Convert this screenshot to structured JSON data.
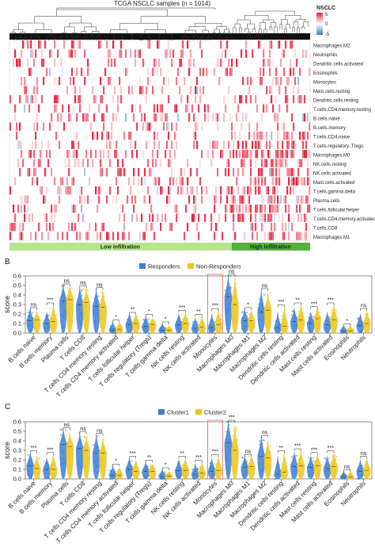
{
  "heatmap": {
    "title": "TCGA NSCLC samples (n = 1014)",
    "legend_title": "NSCLC",
    "legend_ticks": [
      "5",
      "0",
      "-5"
    ],
    "rows": [
      "Macrophages.M2",
      "Neutrophils",
      "Dendritic.cells.activated",
      "Eosinophils",
      "Monocytes",
      "Mast.cells.resting",
      "Dendritic.cells.resting",
      "T.cells.CD4.memory.resting",
      "B.cells.naive",
      "B.cells.memory",
      "T.cells.CD4.naive",
      "T.cells.regulatory..Tregs.",
      "Macrophages.M0",
      "NK.cells.resting",
      "NK.cells.activated",
      "Mast.cells.activated",
      "T.cells.gamma.delta",
      "Plasma.cells",
      "T.cells.follicular.helper",
      "T.cells.CD4.memory.activated",
      "T.cells.CD8",
      "Macrophages.M1"
    ],
    "groups": [
      {
        "label": "Low infiltration",
        "color": "#b7e58e"
      },
      {
        "label": "High infiltration",
        "color": "#55b23c"
      }
    ]
  },
  "panels": [
    {
      "letter": "B",
      "legend": [
        {
          "label": "Responders",
          "color": "#3a7fd5"
        },
        {
          "label": "Non-Responders",
          "color": "#f0c419"
        }
      ]
    },
    {
      "letter": "C",
      "legend": [
        {
          "label": "Cluster1",
          "color": "#3a7fd5"
        },
        {
          "label": "Cluster2",
          "color": "#f0c419"
        }
      ]
    }
  ],
  "chart_data": [
    {
      "type": "heatmap",
      "title": "TCGA NSCLC samples (n = 1014)",
      "rows": [
        "Macrophages.M2",
        "Neutrophils",
        "Dendritic.cells.activated",
        "Eosinophils",
        "Monocytes",
        "Mast.cells.resting",
        "Dendritic.cells.resting",
        "T.cells.CD4.memory.resting",
        "B.cells.naive",
        "B.cells.memory",
        "T.cells.CD4.naive",
        "T.cells.regulatory..Tregs.",
        "Macrophages.M0",
        "NK.cells.resting",
        "NK.cells.activated",
        "Mast.cells.activated",
        "T.cells.gamma.delta",
        "Plasma.cells",
        "T.cells.follicular.helper",
        "T.cells.CD4.memory.activated",
        "T.cells.CD8",
        "Macrophages.M1"
      ],
      "color_range": [
        -5,
        5
      ],
      "legend_title": "NSCLC",
      "column_groups": [
        {
          "label": "Low infiltration",
          "fraction": 0.74
        },
        {
          "label": "High infiltration",
          "fraction": 0.26
        }
      ]
    },
    {
      "type": "violin",
      "panel": "B",
      "ylabel": "score",
      "ylim": [
        0,
        0.6
      ],
      "yticks": [
        "0.0",
        "0.1",
        "0.2",
        "0.3",
        "0.4",
        "0.5",
        "0.6"
      ],
      "categories": [
        "B cells naive",
        "B cells memory",
        "Plasma cells",
        "T cells CD8",
        "T cells CD4 memory resting",
        "T cells CD4 memory activated",
        "T cells follicular helper",
        "T cells regulatory (Tregs)",
        "T cells gamma delta",
        "NK cells resting",
        "NK cells activated",
        "Monocytes",
        "Macrophages M0",
        "Macrophages M1",
        "Macrophages M2",
        "Dendritic cells resting",
        "Dendritic cells activated",
        "Mast cells resting",
        "Mast cells activated",
        "Eosinophils",
        "Neutrophils"
      ],
      "significance": [
        "ns",
        "***",
        "ns",
        "ns",
        "ns",
        "*",
        "**",
        "*",
        "*",
        "***",
        "**",
        "***",
        "ns",
        "*",
        "ns",
        "***",
        "**",
        "***",
        "***",
        "*",
        "ns"
      ],
      "highlight": "Monocytes",
      "series": [
        {
          "name": "Responders",
          "medians": [
            0.13,
            0.1,
            0.34,
            0.3,
            0.28,
            0.03,
            0.09,
            0.07,
            0.03,
            0.09,
            0.05,
            0.06,
            0.38,
            0.13,
            0.22,
            0.05,
            0.12,
            0.1,
            0.09,
            0.02,
            0.08
          ],
          "max": [
            0.25,
            0.22,
            0.5,
            0.48,
            0.46,
            0.12,
            0.2,
            0.18,
            0.1,
            0.2,
            0.16,
            0.2,
            0.6,
            0.25,
            0.45,
            0.22,
            0.26,
            0.22,
            0.22,
            0.08,
            0.2
          ]
        },
        {
          "name": "Non-Responders",
          "medians": [
            0.14,
            0.12,
            0.35,
            0.32,
            0.27,
            0.04,
            0.1,
            0.09,
            0.03,
            0.1,
            0.06,
            0.09,
            0.3,
            0.13,
            0.24,
            0.07,
            0.14,
            0.15,
            0.14,
            0.02,
            0.1
          ],
          "max": [
            0.22,
            0.3,
            0.5,
            0.46,
            0.44,
            0.12,
            0.2,
            0.16,
            0.08,
            0.22,
            0.18,
            0.24,
            0.58,
            0.24,
            0.42,
            0.28,
            0.3,
            0.26,
            0.3,
            0.08,
            0.24
          ]
        }
      ]
    },
    {
      "type": "violin",
      "panel": "C",
      "ylabel": "score",
      "ylim": [
        0,
        0.6
      ],
      "yticks": [
        "0.0",
        "0.1",
        "0.2",
        "0.3",
        "0.4",
        "0.5",
        "0.6"
      ],
      "categories": [
        "B cells naive",
        "B cells memory",
        "Plasma cells",
        "T cells CD8",
        "T cells CD4 memory resting",
        "T cells CD4 memory activated",
        "T cells follicular helper",
        "T cells regulatory (Tregs)",
        "T cells gamma delta",
        "NK cells resting",
        "NK cells activated",
        "Monocytes",
        "Macrophages M0",
        "Macrophages M1",
        "Macrophages M2",
        "Dendritic cells resting",
        "Dendritic cells activated",
        "Mast cells resting",
        "Mast cells activated",
        "Eosinophils",
        "Neutrophils"
      ],
      "significance": [
        "***",
        "***",
        "ns",
        "ns",
        "ns",
        "*",
        "***",
        "**",
        "*",
        "**",
        "***",
        "***",
        "***",
        "ns",
        "ns",
        "**",
        "***",
        "***",
        "***",
        "ns",
        "ns"
      ],
      "highlight": "Monocytes",
      "series": [
        {
          "name": "Cluster1",
          "medians": [
            0.14,
            0.1,
            0.36,
            0.32,
            0.27,
            0.04,
            0.1,
            0.08,
            0.03,
            0.09,
            0.05,
            0.08,
            0.38,
            0.12,
            0.24,
            0.05,
            0.13,
            0.12,
            0.11,
            0.02,
            0.08
          ],
          "max": [
            0.28,
            0.22,
            0.52,
            0.48,
            0.46,
            0.14,
            0.22,
            0.18,
            0.1,
            0.2,
            0.16,
            0.22,
            0.6,
            0.24,
            0.44,
            0.24,
            0.28,
            0.24,
            0.24,
            0.08,
            0.2
          ]
        },
        {
          "name": "Cluster2",
          "medians": [
            0.11,
            0.1,
            0.34,
            0.3,
            0.27,
            0.04,
            0.08,
            0.08,
            0.03,
            0.09,
            0.06,
            0.09,
            0.3,
            0.13,
            0.22,
            0.07,
            0.14,
            0.14,
            0.13,
            0.02,
            0.09
          ],
          "max": [
            0.24,
            0.26,
            0.48,
            0.44,
            0.42,
            0.12,
            0.2,
            0.16,
            0.08,
            0.22,
            0.18,
            0.24,
            0.56,
            0.24,
            0.4,
            0.28,
            0.3,
            0.26,
            0.28,
            0.08,
            0.22
          ]
        }
      ]
    }
  ]
}
